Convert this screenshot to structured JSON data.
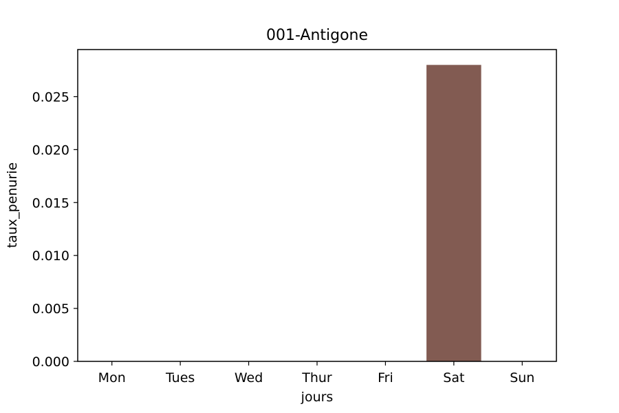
{
  "chart_data": {
    "type": "bar",
    "title": "001-Antigone",
    "xlabel": "jours",
    "ylabel": "taux_penurie",
    "categories": [
      "Mon",
      "Tues",
      "Wed",
      "Thur",
      "Fri",
      "Sat",
      "Sun"
    ],
    "values": [
      0,
      0,
      0,
      0,
      0,
      0.028,
      0
    ],
    "ylim": [
      0,
      0.02945
    ],
    "yticks": [
      0.0,
      0.005,
      0.01,
      0.015,
      0.02,
      0.025
    ],
    "ytick_labels": [
      "0.000",
      "0.005",
      "0.010",
      "0.015",
      "0.020",
      "0.025"
    ],
    "bar_color": "#825b52",
    "grid": false,
    "legend": "none"
  }
}
